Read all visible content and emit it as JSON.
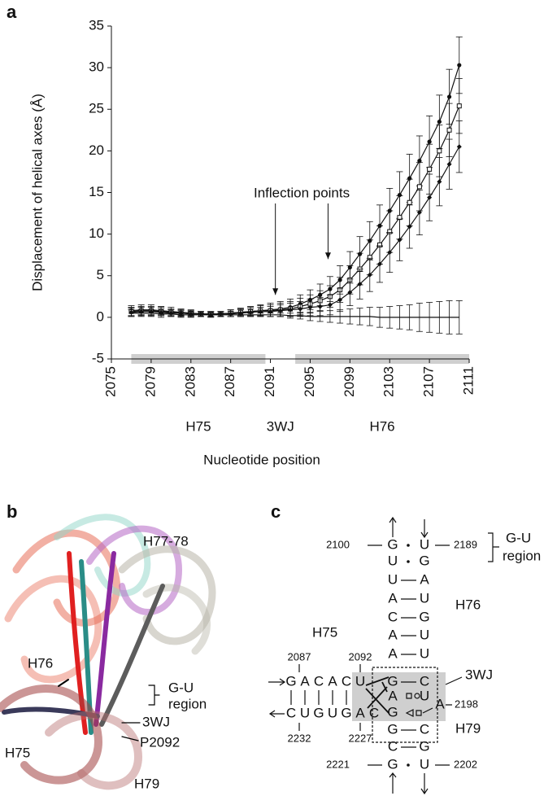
{
  "chart_data": {
    "type": "line",
    "panel_label": "a",
    "ylabel": "Displacement of helical axes (Å)",
    "xlabel": "Nucleotide position",
    "xlim": [
      2075,
      2111
    ],
    "xticks": [
      2075,
      2079,
      2083,
      2087,
      2091,
      2095,
      2099,
      2103,
      2107,
      2111
    ],
    "ylim": [
      -5,
      35
    ],
    "yticks": [
      -5,
      0,
      5,
      10,
      15,
      20,
      25,
      30,
      35
    ],
    "x": [
      2077,
      2078,
      2079,
      2080,
      2081,
      2082,
      2083,
      2084,
      2085,
      2086,
      2087,
      2088,
      2089,
      2090,
      2091,
      2092,
      2093,
      2094,
      2095,
      2096,
      2097,
      2098,
      2099,
      2100,
      2101,
      2102,
      2103,
      2104,
      2105,
      2106,
      2107,
      2108,
      2109,
      2110
    ],
    "series": [
      {
        "marker": "circle",
        "color": "#111111",
        "values": [
          0.8,
          0.9,
          0.9,
          0.8,
          0.7,
          0.6,
          0.5,
          0.4,
          0.4,
          0.4,
          0.5,
          0.6,
          0.7,
          0.8,
          0.9,
          1.0,
          1.2,
          1.6,
          2.1,
          2.7,
          3.4,
          4.5,
          6.0,
          7.6,
          9.2,
          11.0,
          12.8,
          14.7,
          16.7,
          18.8,
          21.1,
          23.5,
          26.5,
          30.3
        ],
        "errors": [
          0.6,
          0.6,
          0.6,
          0.5,
          0.5,
          0.4,
          0.4,
          0.3,
          0.3,
          0.3,
          0.4,
          0.5,
          0.6,
          0.7,
          0.8,
          0.9,
          1.0,
          1.1,
          1.2,
          1.3,
          1.5,
          1.7,
          1.9,
          2.1,
          2.3,
          2.5,
          2.7,
          2.8,
          2.9,
          3.0,
          3.1,
          3.2,
          3.3,
          3.4
        ]
      },
      {
        "marker": "square",
        "color": "#111111",
        "values": [
          0.7,
          0.8,
          0.8,
          0.7,
          0.6,
          0.5,
          0.5,
          0.4,
          0.4,
          0.4,
          0.5,
          0.6,
          0.7,
          0.8,
          0.8,
          0.9,
          1.0,
          1.3,
          1.6,
          2.0,
          2.5,
          3.3,
          4.5,
          5.8,
          7.2,
          8.7,
          10.3,
          12.0,
          13.8,
          15.7,
          17.8,
          20.0,
          22.5,
          25.4
        ],
        "errors": [
          0.5,
          0.5,
          0.5,
          0.5,
          0.4,
          0.4,
          0.3,
          0.3,
          0.3,
          0.3,
          0.4,
          0.4,
          0.5,
          0.6,
          0.7,
          0.8,
          0.9,
          1.0,
          1.1,
          1.2,
          1.3,
          1.5,
          1.7,
          1.9,
          2.1,
          2.3,
          2.5,
          2.6,
          2.8,
          2.9,
          3.0,
          3.1,
          3.2,
          3.3
        ]
      },
      {
        "marker": "diamond",
        "color": "#111111",
        "values": [
          0.6,
          0.7,
          0.7,
          0.6,
          0.5,
          0.5,
          0.4,
          0.4,
          0.3,
          0.4,
          0.4,
          0.5,
          0.6,
          0.7,
          0.7,
          0.8,
          0.9,
          1.0,
          1.2,
          1.3,
          1.5,
          2.1,
          3.0,
          4.0,
          5.1,
          6.4,
          7.8,
          9.3,
          10.9,
          12.6,
          14.4,
          16.3,
          18.4,
          20.5
        ],
        "errors": [
          0.5,
          0.5,
          0.5,
          0.4,
          0.4,
          0.3,
          0.3,
          0.3,
          0.3,
          0.3,
          0.3,
          0.4,
          0.4,
          0.5,
          0.6,
          0.7,
          0.8,
          0.9,
          1.0,
          1.1,
          1.2,
          1.4,
          1.6,
          1.8,
          2.0,
          2.2,
          2.4,
          2.5,
          2.6,
          2.7,
          2.8,
          2.9,
          3.0,
          3.1
        ]
      },
      {
        "marker": "none",
        "color": "#111111",
        "values": [
          0.5,
          0.5,
          0.5,
          0.4,
          0.4,
          0.3,
          0.3,
          0.3,
          0.3,
          0.3,
          0.3,
          0.3,
          0.3,
          0.3,
          0.3,
          0.3,
          0.2,
          0.2,
          0.1,
          0.1,
          0.1,
          0.1,
          0.1,
          0.1,
          0.1,
          0.0,
          0.0,
          0.0,
          0.0,
          0.0,
          0.0,
          0.0,
          0.0,
          0.0
        ],
        "errors": [
          0.4,
          0.4,
          0.4,
          0.4,
          0.3,
          0.3,
          0.3,
          0.2,
          0.2,
          0.2,
          0.2,
          0.2,
          0.2,
          0.2,
          0.2,
          0.2,
          0.3,
          0.4,
          0.5,
          0.6,
          0.7,
          0.8,
          0.9,
          1.0,
          1.1,
          1.2,
          1.3,
          1.4,
          1.5,
          1.7,
          1.8,
          1.9,
          2.0,
          2.0
        ]
      }
    ],
    "regions": [
      {
        "label": "H75",
        "start": 2077,
        "end": 2090.5,
        "shaded": true
      },
      {
        "label": "3WJ",
        "start": 2090.5,
        "end": 2093.5,
        "shaded": false
      },
      {
        "label": "H76",
        "start": 2093.5,
        "end": 2111,
        "shaded": true
      }
    ],
    "annotations": [
      {
        "text": "Inflection points",
        "points": [
          [
            2091.5,
            2.7
          ],
          [
            2096.8,
            7.0
          ]
        ]
      }
    ]
  },
  "panel_b": {
    "label": "b",
    "h77_78": "H77-78",
    "h76": "H76",
    "gu_region": [
      "G-U",
      "region"
    ],
    "wj": "3WJ",
    "p2092": "P2092",
    "h75": "H75",
    "h79": "H79"
  },
  "panel_c": {
    "label": "c",
    "nucleotides": [
      "G",
      "U",
      "U",
      "G",
      "U",
      "A",
      "A",
      "U",
      "C",
      "G",
      "A",
      "U",
      "A",
      "U",
      "G",
      "A",
      "C",
      "A",
      "C",
      "U",
      "G",
      "C",
      "A",
      "U",
      "A",
      "G",
      "C",
      "U",
      "G",
      "U",
      "G",
      "A",
      "C",
      "G",
      "C",
      "C",
      "G",
      "G",
      "U"
    ],
    "numbers": [
      "2100",
      "2189",
      "2087",
      "2092",
      "2198",
      "2232",
      "2227",
      "2221",
      "2202"
    ],
    "gu_region": [
      "G-U",
      "region"
    ],
    "h76": "H76",
    "h75": "H75",
    "wj": "3WJ",
    "h79": "H79"
  }
}
